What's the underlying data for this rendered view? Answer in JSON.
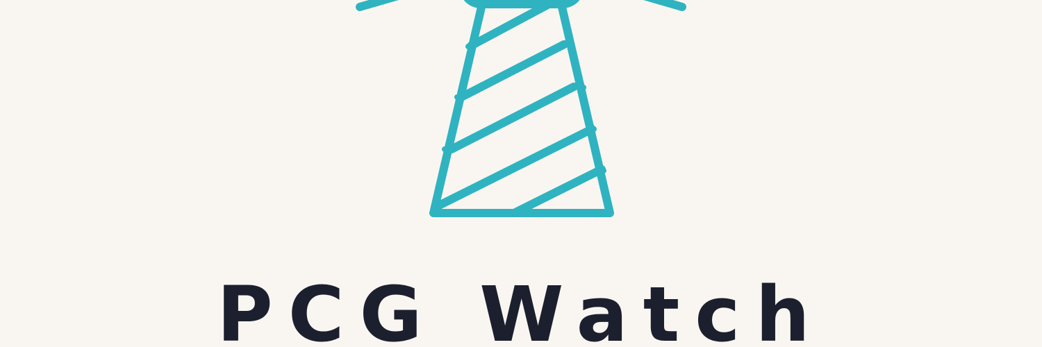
{
  "brand": {
    "name": "PCG Watch",
    "logo_icon": "lighthouse-icon"
  },
  "colors": {
    "background": "#f9f6f1",
    "accent": "#2fb3c0",
    "text": "#1c1f2e"
  }
}
